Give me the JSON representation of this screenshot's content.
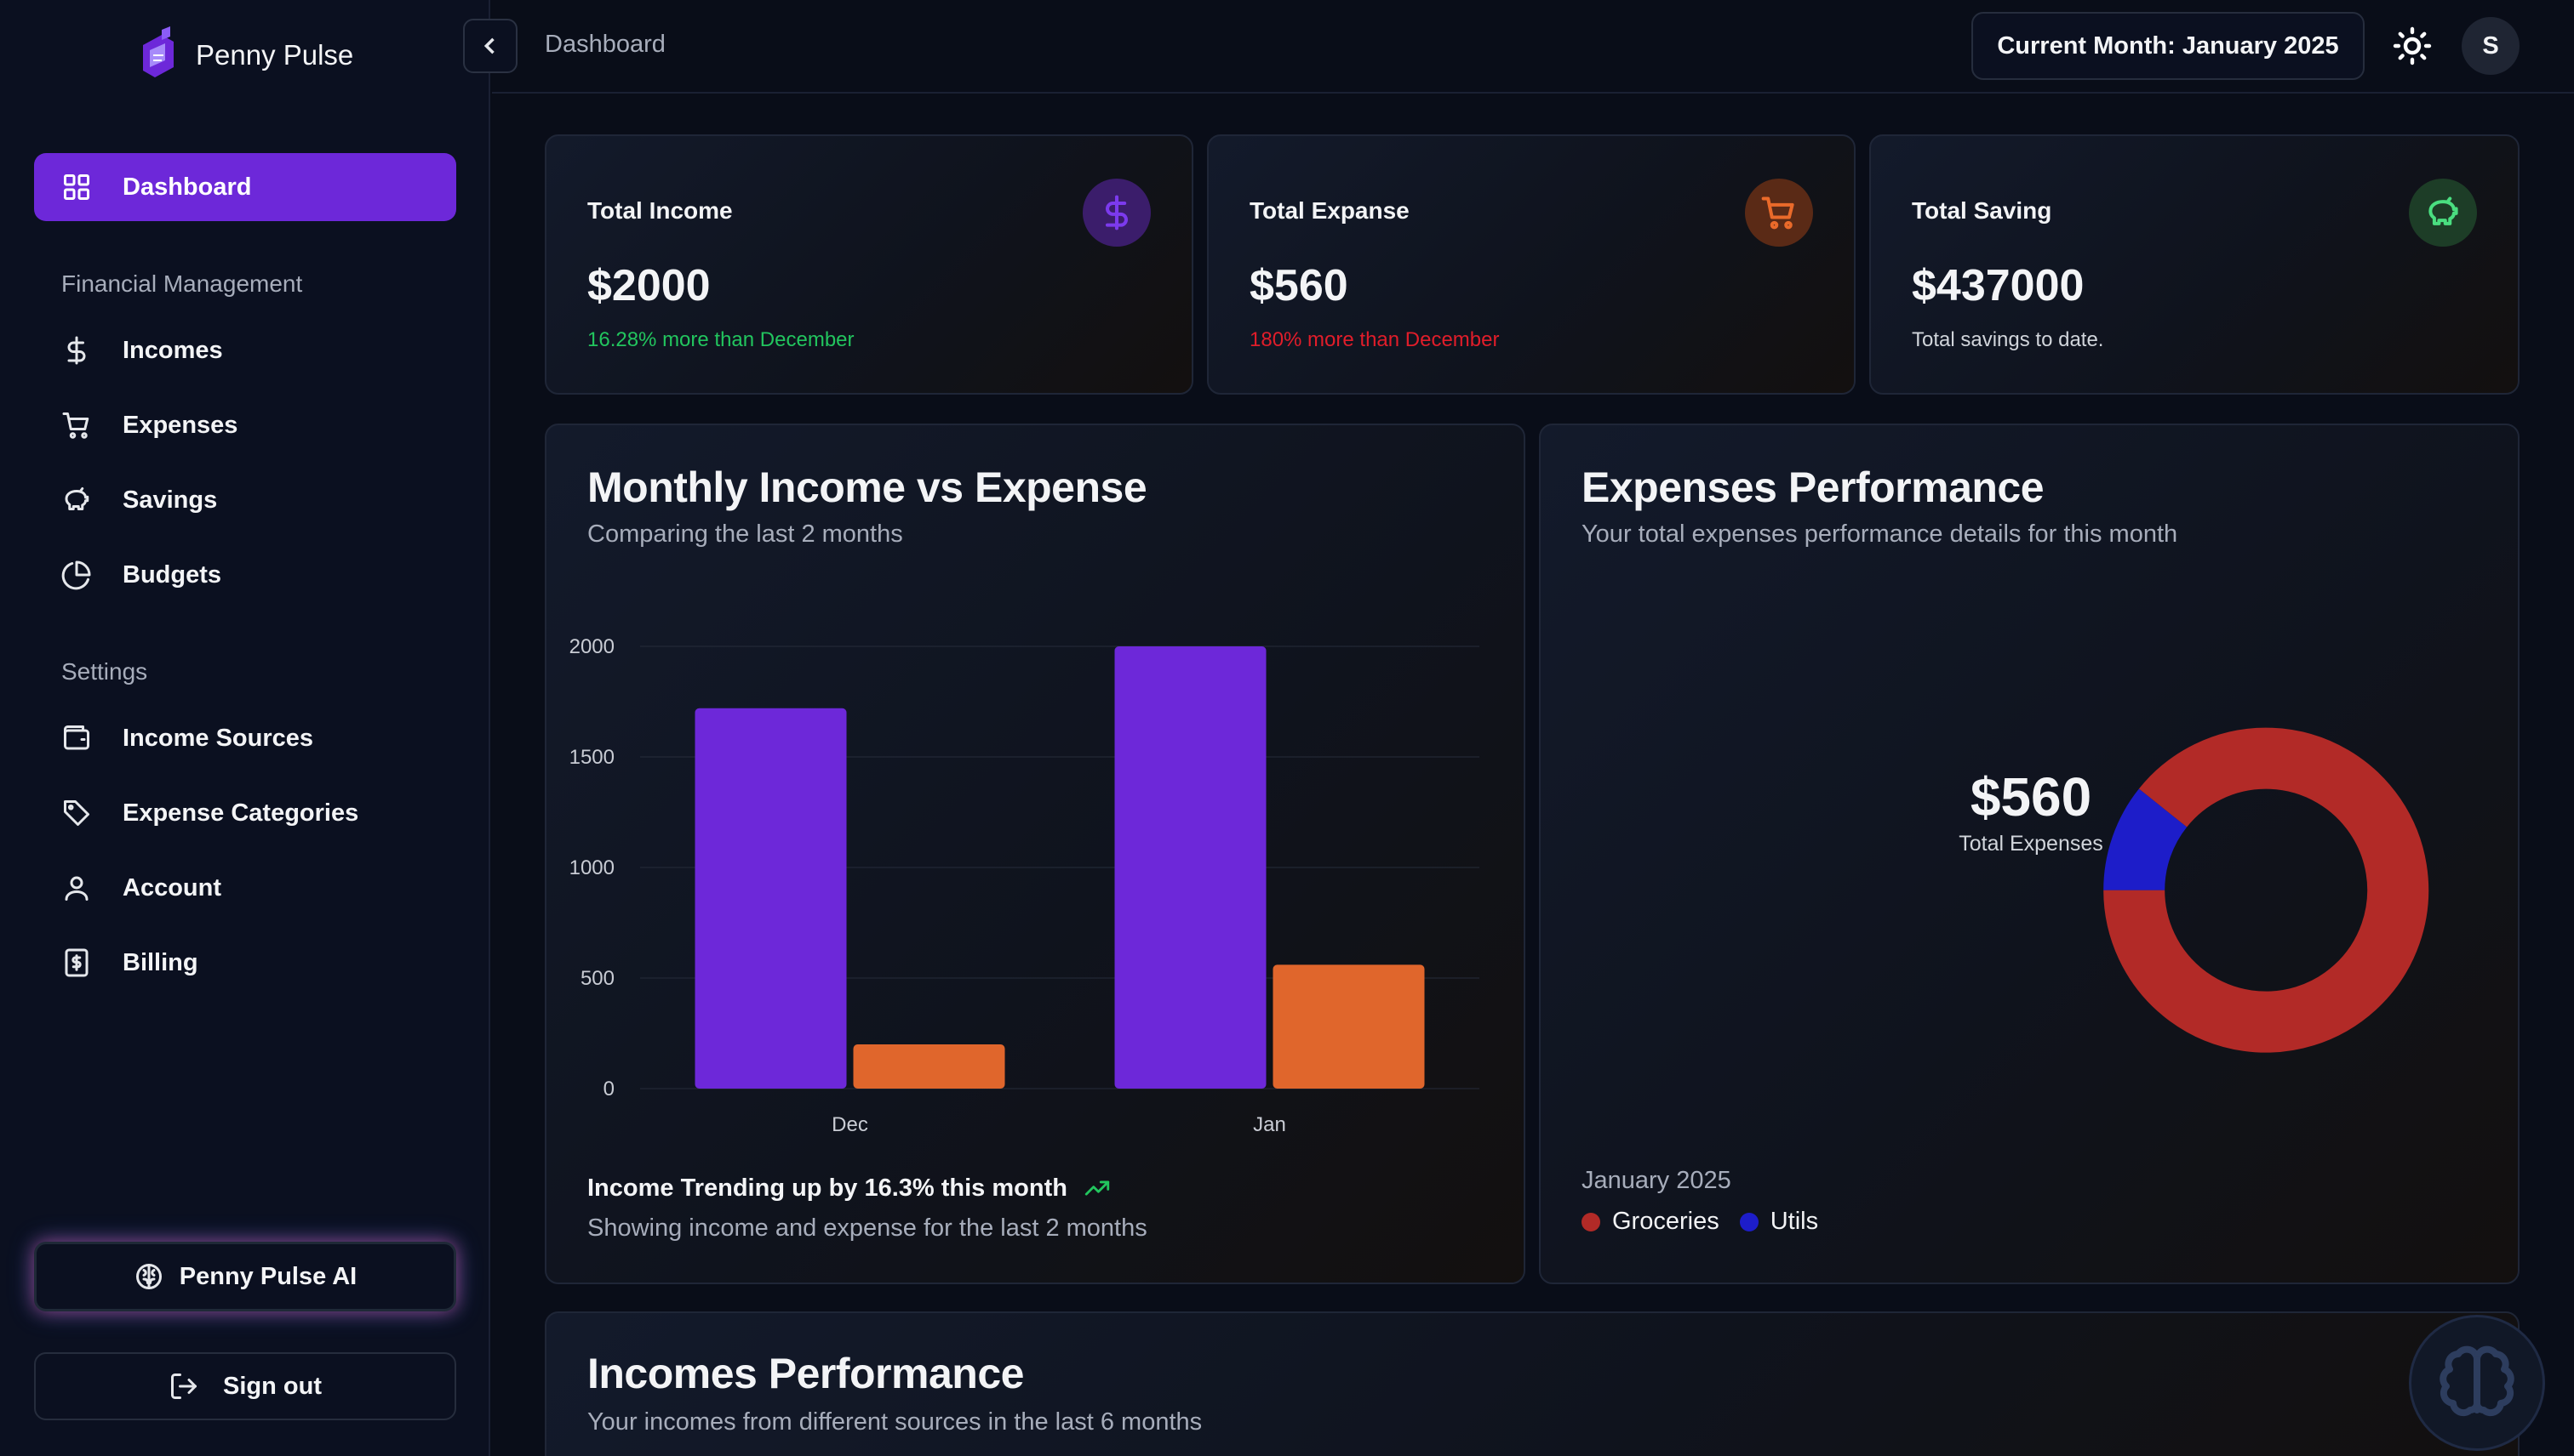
{
  "brand": {
    "name": "Penny Pulse"
  },
  "sidebar": {
    "active": {
      "label": "Dashboard",
      "icon": "grid-icon"
    },
    "section1": "Financial Management",
    "financial": [
      {
        "label": "Incomes",
        "icon": "dollar-icon"
      },
      {
        "label": "Expenses",
        "icon": "cart-icon"
      },
      {
        "label": "Savings",
        "icon": "piggy-bank-icon"
      },
      {
        "label": "Budgets",
        "icon": "pie-icon"
      }
    ],
    "section2": "Settings",
    "settings": [
      {
        "label": "Income Sources",
        "icon": "wallet-icon"
      },
      {
        "label": "Expense Categories",
        "icon": "tag-icon"
      },
      {
        "label": "Account",
        "icon": "user-icon"
      },
      {
        "label": "Billing",
        "icon": "receipt-icon"
      }
    ],
    "ai_label": "Penny Pulse AI",
    "signout_label": "Sign out"
  },
  "header": {
    "breadcrumb": "Dashboard",
    "month_button": "Current Month: January 2025",
    "avatar_initial": "S"
  },
  "stats": {
    "income": {
      "title": "Total Income",
      "value": "$2000",
      "note": "16.28% more than December",
      "note_color": "#22c55e",
      "icon": "dollar-icon",
      "icon_bg": "#3b1d6b",
      "icon_color": "#7c3aed"
    },
    "expense": {
      "title": "Total Expanse",
      "value": "$560",
      "note": "180% more than December",
      "note_color": "#e11d2a",
      "icon": "cart-icon",
      "icon_bg": "#5a2a16",
      "icon_color": "#ea6a2a"
    },
    "saving": {
      "title": "Total Saving",
      "value": "$437000",
      "note": "Total savings to date.",
      "note_color": "#d1d5db",
      "icon": "piggy-bank-icon",
      "icon_bg": "#1d3d27",
      "icon_color": "#4ade80"
    }
  },
  "income_chart": {
    "title": "Monthly Income vs Expense",
    "subtitle": "Comparing the last 2 months",
    "trend": "Income Trending up by 16.3% this month",
    "footer": "Showing income and expense for the last 2 months"
  },
  "expense_chart": {
    "title": "Expenses Performance",
    "subtitle": "Your total expenses performance details for this month",
    "center_value": "$560",
    "center_label": "Total Expenses",
    "period": "January 2025"
  },
  "incomes_perf": {
    "title": "Incomes Performance",
    "subtitle": "Your incomes from different sources in the last 6 months"
  },
  "colors": {
    "income": "#6d28d9",
    "expense": "#e0662c",
    "groceries": "#b22a27",
    "utils": "#1d1dc9"
  },
  "chart_data": [
    {
      "type": "bar",
      "categories": [
        "Dec",
        "Jan"
      ],
      "series": [
        {
          "values": [
            1720,
            2000
          ],
          "color": "#6d28d9"
        },
        {
          "values": [
            200,
            560
          ],
          "color": "#e0662c"
        }
      ],
      "yticks": [
        0,
        500,
        1000,
        1500,
        2000
      ],
      "ylim": [
        0,
        2000
      ],
      "grid": true
    },
    {
      "type": "pie",
      "donut": true,
      "slices": [
        {
          "name": "Groceries",
          "value": 500,
          "color": "#b22a27"
        },
        {
          "name": "Utils",
          "value": 60,
          "color": "#1d1dc9"
        }
      ],
      "legend": "bottom-left"
    }
  ]
}
